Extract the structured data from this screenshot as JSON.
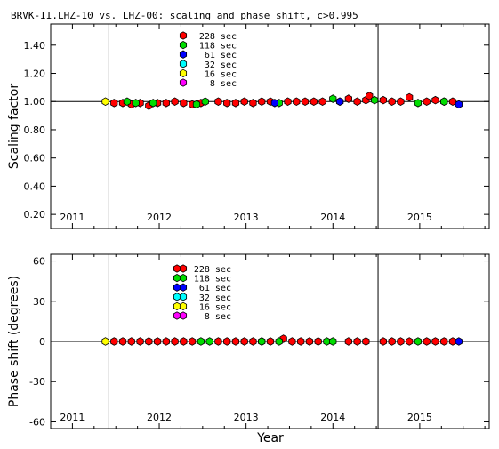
{
  "title": "BRVK-II.LHZ-10 vs. LHZ-00: scaling and phase shift, c>0.995",
  "x_axis_label": "Year",
  "legend": [
    {
      "label": "228 sec",
      "color": "#ff0000"
    },
    {
      "label": "118 sec",
      "color": "#00dd00"
    },
    {
      "label": "61 sec",
      "color": "#0000ff"
    },
    {
      "label": "32 sec",
      "color": "#00ffff"
    },
    {
      "label": "16 sec",
      "color": "#ffff00"
    },
    {
      "label": "8 sec",
      "color": "#ff00ff"
    }
  ],
  "chart_data": [
    {
      "type": "scatter",
      "ylabel": "Scaling factor",
      "xlim": [
        2010.75,
        2015.8
      ],
      "ylim": [
        0.1,
        1.55
      ],
      "x_ticks": [
        2011,
        2012,
        2013,
        2014,
        2015
      ],
      "y_ticks": [
        0.2,
        0.4,
        0.6,
        0.8,
        1.0,
        1.2,
        1.4
      ],
      "y_tick_labels": [
        "0.20",
        "0.40",
        "0.60",
        "0.80",
        "1.00",
        "1.20",
        "1.40"
      ],
      "reference_line": 1.0,
      "vertical_lines": [
        2011.42,
        2014.52
      ],
      "series": [
        {
          "name": "228 sec",
          "color": "#ff0000",
          "points": [
            [
              2011.48,
              0.99
            ],
            [
              2011.58,
              0.99
            ],
            [
              2011.68,
              0.98
            ],
            [
              2011.78,
              0.99
            ],
            [
              2011.88,
              0.97
            ],
            [
              2011.98,
              0.99
            ],
            [
              2012.08,
              0.99
            ],
            [
              2012.18,
              1.0
            ],
            [
              2012.28,
              0.99
            ],
            [
              2012.38,
              0.98
            ],
            [
              2012.48,
              0.99
            ],
            [
              2012.68,
              1.0
            ],
            [
              2012.78,
              0.99
            ],
            [
              2012.88,
              0.99
            ],
            [
              2012.98,
              1.0
            ],
            [
              2013.08,
              0.99
            ],
            [
              2013.18,
              1.0
            ],
            [
              2013.28,
              1.0
            ],
            [
              2013.48,
              1.0
            ],
            [
              2013.58,
              1.0
            ],
            [
              2013.68,
              1.0
            ],
            [
              2013.78,
              1.0
            ],
            [
              2013.88,
              1.0
            ],
            [
              2014.08,
              1.0
            ],
            [
              2014.18,
              1.02
            ],
            [
              2014.28,
              1.0
            ],
            [
              2014.38,
              1.01
            ],
            [
              2014.42,
              1.04
            ],
            [
              2014.58,
              1.01
            ],
            [
              2014.68,
              1.0
            ],
            [
              2014.78,
              1.0
            ],
            [
              2014.88,
              1.03
            ],
            [
              2015.08,
              1.0
            ],
            [
              2015.18,
              1.01
            ],
            [
              2015.28,
              1.0
            ],
            [
              2015.38,
              1.0
            ]
          ]
        },
        {
          "name": "118 sec",
          "color": "#00dd00",
          "points": [
            [
              2011.63,
              1.0
            ],
            [
              2011.73,
              0.99
            ],
            [
              2011.93,
              0.99
            ],
            [
              2012.43,
              0.98
            ],
            [
              2012.53,
              1.0
            ],
            [
              2013.38,
              0.99
            ],
            [
              2014.0,
              1.02
            ],
            [
              2014.48,
              1.01
            ],
            [
              2014.98,
              0.99
            ],
            [
              2015.28,
              1.0
            ]
          ]
        },
        {
          "name": "61 sec",
          "color": "#0000ff",
          "points": [
            [
              2013.33,
              0.99
            ],
            [
              2014.08,
              1.0
            ],
            [
              2015.45,
              0.98
            ]
          ]
        },
        {
          "name": "16 sec",
          "color": "#ffff00",
          "points": [
            [
              2011.38,
              1.0
            ]
          ]
        }
      ]
    },
    {
      "type": "scatter",
      "ylabel": "Phase shift (degrees)",
      "xlim": [
        2010.75,
        2015.8
      ],
      "ylim": [
        -65,
        65
      ],
      "x_ticks": [
        2011,
        2012,
        2013,
        2014,
        2015
      ],
      "y_ticks": [
        -60,
        -30,
        0,
        30,
        60
      ],
      "y_tick_labels": [
        "-60",
        "-30",
        "0",
        "30",
        "60"
      ],
      "reference_line": 0,
      "vertical_lines": [
        2011.42,
        2014.52
      ],
      "series": [
        {
          "name": "228 sec",
          "color": "#ff0000",
          "points": [
            [
              2011.48,
              0
            ],
            [
              2011.58,
              0
            ],
            [
              2011.68,
              0
            ],
            [
              2011.78,
              0
            ],
            [
              2011.88,
              0
            ],
            [
              2011.98,
              0
            ],
            [
              2012.08,
              0
            ],
            [
              2012.18,
              0
            ],
            [
              2012.28,
              0
            ],
            [
              2012.38,
              0
            ],
            [
              2012.68,
              0
            ],
            [
              2012.78,
              0
            ],
            [
              2012.88,
              0
            ],
            [
              2012.98,
              0
            ],
            [
              2013.08,
              0
            ],
            [
              2013.18,
              0
            ],
            [
              2013.28,
              0
            ],
            [
              2013.43,
              2
            ],
            [
              2013.53,
              0
            ],
            [
              2013.63,
              0
            ],
            [
              2013.73,
              0
            ],
            [
              2013.83,
              0
            ],
            [
              2014.18,
              0
            ],
            [
              2014.28,
              0
            ],
            [
              2014.38,
              0
            ],
            [
              2014.58,
              0
            ],
            [
              2014.68,
              0
            ],
            [
              2014.78,
              0
            ],
            [
              2014.88,
              0
            ],
            [
              2015.08,
              0
            ],
            [
              2015.18,
              0
            ],
            [
              2015.28,
              0
            ],
            [
              2015.38,
              0
            ]
          ]
        },
        {
          "name": "118 sec",
          "color": "#00dd00",
          "points": [
            [
              2012.48,
              0
            ],
            [
              2012.58,
              0
            ],
            [
              2013.18,
              0
            ],
            [
              2013.38,
              0
            ],
            [
              2013.93,
              0
            ],
            [
              2014.0,
              0
            ],
            [
              2014.98,
              0
            ]
          ]
        },
        {
          "name": "61 sec",
          "color": "#0000ff",
          "points": [
            [
              2015.45,
              0
            ]
          ]
        },
        {
          "name": "16 sec",
          "color": "#ffff00",
          "points": [
            [
              2011.38,
              0
            ]
          ]
        }
      ]
    }
  ]
}
